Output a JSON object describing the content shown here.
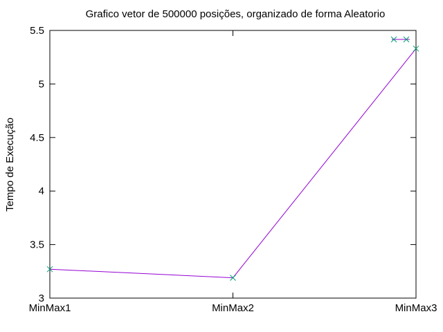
{
  "chart_data": {
    "type": "line",
    "title": "Grafico vetor de 500000 posições, organizado de forma Aleatorio",
    "xlabel": "",
    "ylabel": "Tempo de Execução",
    "categories": [
      "MinMax1",
      "MinMax2",
      "MinMax3"
    ],
    "series": [
      {
        "values": [
          3.27,
          3.19,
          5.33
        ]
      }
    ],
    "ylim": [
      3,
      5.5
    ],
    "yticks": [
      "3",
      "3.5",
      "4",
      "4.5",
      "5",
      "5.5"
    ],
    "grid": false,
    "legend": "top-right",
    "line_color": "#9400d3",
    "marker_color": "#009e73"
  }
}
